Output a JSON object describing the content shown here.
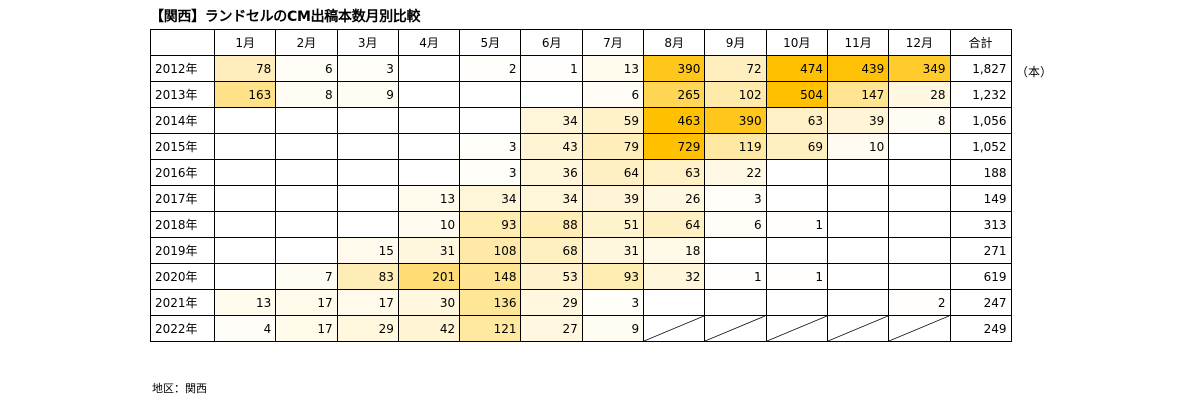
{
  "title": "【関西】ランドセルのCM出稿本数月別比較",
  "unit": "（本）",
  "note": "地区：関西",
  "colors": {
    "scale_max": "#FFC000",
    "scale_min": "#FFFFFF",
    "border": "#000000"
  },
  "chart_data": {
    "type": "table",
    "title": "【関西】ランドセルのCM出稿本数月別比較",
    "columns": [
      "1月",
      "2月",
      "3月",
      "4月",
      "5月",
      "6月",
      "7月",
      "8月",
      "9月",
      "10月",
      "11月",
      "12月",
      "合計"
    ],
    "rows": [
      {
        "year": "2012年",
        "values": [
          78,
          6,
          3,
          null,
          2,
          1,
          13,
          390,
          72,
          474,
          439,
          349
        ],
        "total": "1,827"
      },
      {
        "year": "2013年",
        "values": [
          163,
          8,
          9,
          null,
          null,
          null,
          6,
          265,
          102,
          504,
          147,
          28
        ],
        "total": "1,232"
      },
      {
        "year": "2014年",
        "values": [
          null,
          null,
          null,
          null,
          null,
          34,
          59,
          463,
          390,
          63,
          39,
          8
        ],
        "total": "1,056"
      },
      {
        "year": "2015年",
        "values": [
          null,
          null,
          null,
          null,
          3,
          43,
          79,
          729,
          119,
          69,
          10,
          null
        ],
        "total": "1,052"
      },
      {
        "year": "2016年",
        "values": [
          null,
          null,
          null,
          null,
          3,
          36,
          64,
          63,
          22,
          null,
          null,
          null
        ],
        "total": "188"
      },
      {
        "year": "2017年",
        "values": [
          null,
          null,
          null,
          13,
          34,
          34,
          39,
          26,
          3,
          null,
          null,
          null
        ],
        "total": "149"
      },
      {
        "year": "2018年",
        "values": [
          null,
          null,
          null,
          10,
          93,
          88,
          51,
          64,
          6,
          1,
          null,
          null
        ],
        "total": "313"
      },
      {
        "year": "2019年",
        "values": [
          null,
          null,
          15,
          31,
          108,
          68,
          31,
          18,
          null,
          null,
          null,
          null
        ],
        "total": "271"
      },
      {
        "year": "2020年",
        "values": [
          null,
          7,
          83,
          201,
          148,
          53,
          93,
          32,
          1,
          1,
          null,
          null
        ],
        "total": "619"
      },
      {
        "year": "2021年",
        "values": [
          13,
          17,
          17,
          30,
          136,
          29,
          3,
          null,
          null,
          null,
          null,
          2
        ],
        "total": "247"
      },
      {
        "year": "2022年",
        "values": [
          4,
          17,
          29,
          42,
          121,
          27,
          9,
          "n/a",
          "n/a",
          "n/a",
          "n/a",
          "n/a"
        ],
        "total": "249"
      }
    ]
  }
}
